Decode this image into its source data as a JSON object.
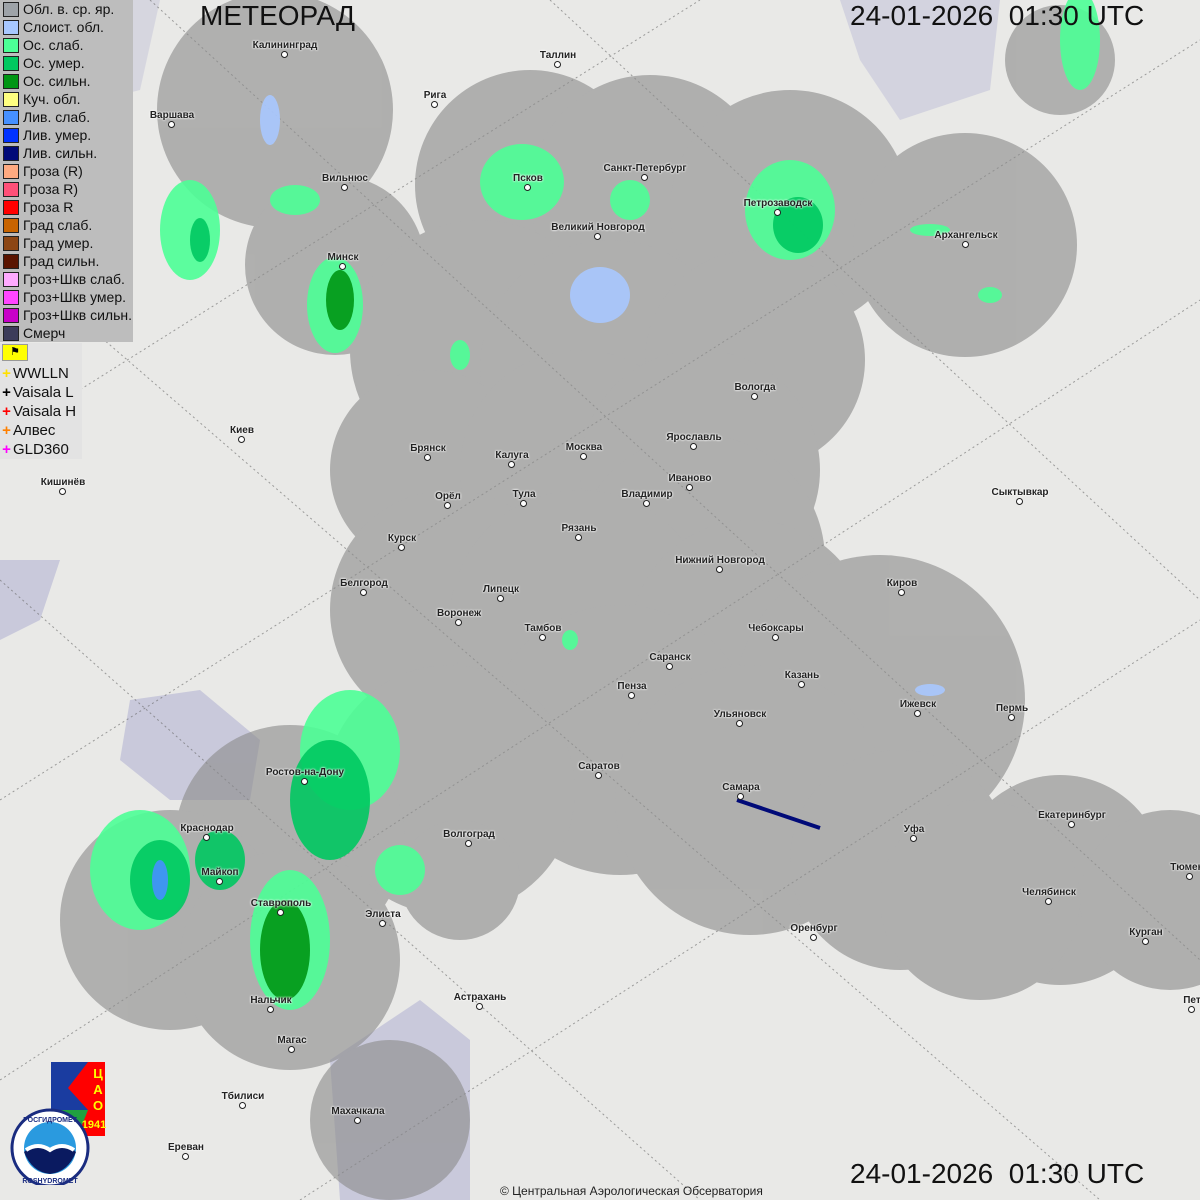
{
  "header": {
    "title": "МЕТЕОРАД",
    "timestamp_top": "24-01-2026  01:30 UTC",
    "timestamp_bottom": "24-01-2026  01:30 UTC"
  },
  "legend": [
    {
      "label": "Обл. в. ср. яр.",
      "color": "#9ea3a8"
    },
    {
      "label": "Слоист. обл.",
      "color": "#a8c8ff"
    },
    {
      "label": "Ос. слаб.",
      "color": "#4cff96"
    },
    {
      "label": "Ос. умер.",
      "color": "#00c860"
    },
    {
      "label": "Ос. сильн.",
      "color": "#009614"
    },
    {
      "label": "Куч. обл.",
      "color": "#ffff80"
    },
    {
      "label": "Лив. слаб.",
      "color": "#4690ff"
    },
    {
      "label": "Лив. умер.",
      "color": "#0032ff"
    },
    {
      "label": "Лив. сильн.",
      "color": "#000a78"
    },
    {
      "label": "Гроза (R)",
      "color": "#ffaa80"
    },
    {
      "label": "Гроза R)",
      "color": "#ff5078"
    },
    {
      "label": "Гроза R",
      "color": "#ff0000"
    },
    {
      "label": "Град слаб.",
      "color": "#c86400"
    },
    {
      "label": "Град умер.",
      "color": "#8c4614"
    },
    {
      "label": "Град сильн.",
      "color": "#5a1400"
    },
    {
      "label": "Гроз+Шкв слаб.",
      "color": "#ffaaff"
    },
    {
      "label": "Гроз+Шкв умер.",
      "color": "#ff46ff"
    },
    {
      "label": "Гроз+Шкв сильн.",
      "color": "#c800c8"
    },
    {
      "label": "Смерч",
      "color": "#3c3c5a"
    }
  ],
  "lightning": {
    "flag_icon": "flag-icon",
    "sources": [
      {
        "label": "WWLLN",
        "color": "#ffe000"
      },
      {
        "label": "Vaisala L",
        "color": "#000000"
      },
      {
        "label": "Vaisala H",
        "color": "#ff0000"
      },
      {
        "label": "Алвес",
        "color": "#ff8000"
      },
      {
        "label": "GLD360",
        "color": "#ff00ff"
      }
    ]
  },
  "cities": [
    "Калининград",
    "Таллин",
    "Рига",
    "Варшава",
    "Псков",
    "Санкт-Петербург",
    "Петрозаводск",
    "Архангельск",
    "Вильнюс",
    "Великий Новгород",
    "Минск",
    "Вологда",
    "Киев",
    "Брянск",
    "Калуга",
    "Москва",
    "Ярославль",
    "Иваново",
    "Кишинёв",
    "Орёл",
    "Тула",
    "Владимир",
    "Сыктывкар",
    "Рязань",
    "Курск",
    "Нижний Новгород",
    "Белгород",
    "Липецк",
    "Киров",
    "Воронеж",
    "Тамбов",
    "Чебоксары",
    "Саранск",
    "Казань",
    "Пенза",
    "Ижевск",
    "Пермь",
    "Ульяновск",
    "Саратов",
    "Ростов-на-Дону",
    "Самара",
    "Екатеринбург",
    "Краснодар",
    "Уфа",
    "Волгоград",
    "Майкоп",
    "Тюмень",
    "Челябинск",
    "Ставрополь",
    "Элиста",
    "Оренбург",
    "Курган",
    "Астрахань",
    "Нальчик",
    "Пет",
    "Магас",
    "Тбилиси",
    "Махачкала",
    "Ереван"
  ],
  "logos": {
    "cao": [
      "Ц",
      "А",
      "О",
      "1941"
    ],
    "roshydromet_ru": "РОСГИДРОМЕТ",
    "roshydromet_en": "ROSHYDROMET"
  },
  "footer": {
    "copyright": "© Центральная Аэрологическая Обсерватория"
  }
}
